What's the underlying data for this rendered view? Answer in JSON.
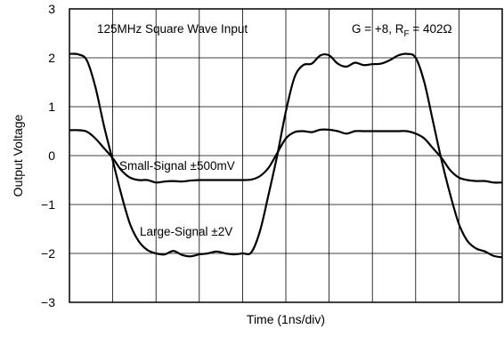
{
  "chart_data": {
    "type": "line",
    "title": "",
    "xlabel": "Time (1ns/div)",
    "ylabel": "Output Voltage",
    "xlim": [
      0,
      10
    ],
    "ylim": [
      -3,
      3
    ],
    "yticks": [
      {
        "value": 3,
        "label": "3"
      },
      {
        "value": 2,
        "label": "2"
      },
      {
        "value": 1,
        "label": "1"
      },
      {
        "value": 0,
        "label": "0"
      },
      {
        "value": -1,
        "label": "−1"
      },
      {
        "value": -2,
        "label": "−2"
      },
      {
        "value": -3,
        "label": "−3"
      }
    ],
    "x_gridlines": [
      1,
      2,
      3,
      4,
      5,
      6,
      7,
      8,
      9
    ],
    "y_gridlines": [
      2,
      1,
      0,
      -1,
      -2
    ],
    "grid": true,
    "legend": "none",
    "annotations": {
      "input": "125MHz Square Wave Input",
      "gain_prefix": "G = +8, R",
      "gain_sub": "F",
      "gain_suffix": " = 402Ω",
      "small_signal": "Small-Signal ±500mV",
      "large_signal": "Large-Signal ±2V"
    },
    "series": [
      {
        "id": "large",
        "color": "#000000",
        "points": [
          [
            0.0,
            2.08
          ],
          [
            0.2,
            2.07
          ],
          [
            0.4,
            1.95
          ],
          [
            0.6,
            1.4
          ],
          [
            0.8,
            0.6
          ],
          [
            1.0,
            -0.1
          ],
          [
            1.2,
            -0.8
          ],
          [
            1.4,
            -1.4
          ],
          [
            1.6,
            -1.75
          ],
          [
            1.8,
            -1.93
          ],
          [
            2.0,
            -2.0
          ],
          [
            2.2,
            -2.02
          ],
          [
            2.4,
            -1.95
          ],
          [
            2.6,
            -2.03
          ],
          [
            2.8,
            -2.06
          ],
          [
            3.0,
            -2.02
          ],
          [
            3.2,
            -2.0
          ],
          [
            3.4,
            -1.96
          ],
          [
            3.6,
            -2.0
          ],
          [
            3.8,
            -2.02
          ],
          [
            4.0,
            -2.0
          ],
          [
            4.2,
            -1.98
          ],
          [
            4.4,
            -1.55
          ],
          [
            4.6,
            -0.8
          ],
          [
            4.8,
            0.0
          ],
          [
            5.0,
            0.9
          ],
          [
            5.2,
            1.6
          ],
          [
            5.4,
            1.85
          ],
          [
            5.6,
            1.88
          ],
          [
            5.8,
            2.05
          ],
          [
            6.0,
            2.05
          ],
          [
            6.2,
            1.88
          ],
          [
            6.4,
            1.82
          ],
          [
            6.6,
            1.9
          ],
          [
            6.8,
            1.85
          ],
          [
            7.0,
            1.87
          ],
          [
            7.2,
            1.88
          ],
          [
            7.4,
            1.95
          ],
          [
            7.6,
            2.05
          ],
          [
            7.8,
            2.08
          ],
          [
            8.0,
            2.0
          ],
          [
            8.2,
            1.5
          ],
          [
            8.4,
            0.7
          ],
          [
            8.6,
            -0.1
          ],
          [
            8.8,
            -0.8
          ],
          [
            9.0,
            -1.4
          ],
          [
            9.2,
            -1.75
          ],
          [
            9.4,
            -1.9
          ],
          [
            9.6,
            -1.96
          ],
          [
            9.8,
            -2.05
          ],
          [
            10.0,
            -2.08
          ]
        ]
      },
      {
        "id": "small",
        "color": "#000000",
        "points": [
          [
            0.0,
            0.52
          ],
          [
            0.2,
            0.52
          ],
          [
            0.4,
            0.49
          ],
          [
            0.6,
            0.35
          ],
          [
            0.8,
            0.15
          ],
          [
            1.0,
            -0.05
          ],
          [
            1.2,
            -0.3
          ],
          [
            1.4,
            -0.45
          ],
          [
            1.6,
            -0.5
          ],
          [
            1.8,
            -0.5
          ],
          [
            2.0,
            -0.55
          ],
          [
            2.2,
            -0.53
          ],
          [
            2.4,
            -0.52
          ],
          [
            2.6,
            -0.53
          ],
          [
            2.8,
            -0.51
          ],
          [
            3.0,
            -0.5
          ],
          [
            3.2,
            -0.5
          ],
          [
            3.4,
            -0.5
          ],
          [
            3.6,
            -0.5
          ],
          [
            3.8,
            -0.5
          ],
          [
            4.0,
            -0.5
          ],
          [
            4.2,
            -0.49
          ],
          [
            4.4,
            -0.42
          ],
          [
            4.6,
            -0.25
          ],
          [
            4.8,
            0.05
          ],
          [
            5.0,
            0.35
          ],
          [
            5.2,
            0.48
          ],
          [
            5.4,
            0.5
          ],
          [
            5.6,
            0.48
          ],
          [
            5.8,
            0.53
          ],
          [
            6.0,
            0.53
          ],
          [
            6.2,
            0.5
          ],
          [
            6.4,
            0.45
          ],
          [
            6.6,
            0.5
          ],
          [
            6.8,
            0.5
          ],
          [
            7.0,
            0.5
          ],
          [
            7.2,
            0.5
          ],
          [
            7.4,
            0.5
          ],
          [
            7.6,
            0.5
          ],
          [
            7.8,
            0.5
          ],
          [
            8.0,
            0.45
          ],
          [
            8.2,
            0.35
          ],
          [
            8.4,
            0.15
          ],
          [
            8.6,
            -0.05
          ],
          [
            8.8,
            -0.3
          ],
          [
            9.0,
            -0.45
          ],
          [
            9.2,
            -0.5
          ],
          [
            9.4,
            -0.52
          ],
          [
            9.6,
            -0.52
          ],
          [
            9.8,
            -0.55
          ],
          [
            10.0,
            -0.55
          ]
        ]
      }
    ]
  }
}
